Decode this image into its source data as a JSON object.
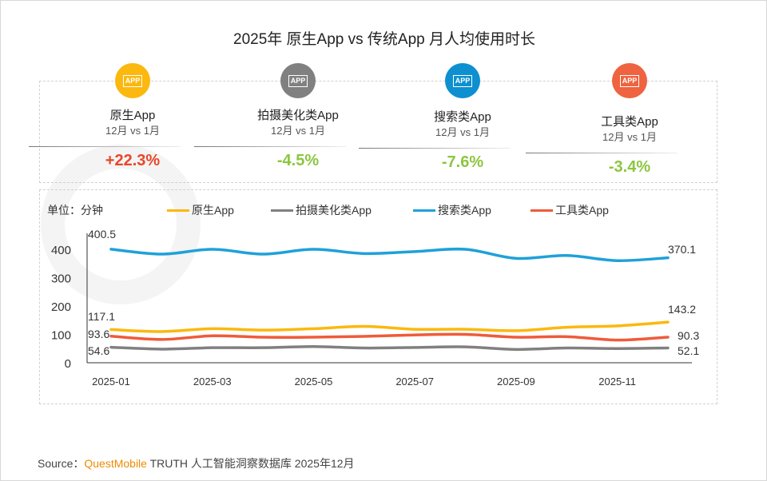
{
  "title": "2025年 原生App vs 传统App 月人均使用时长",
  "watermark": "QUESTMOBILE",
  "cards": [
    {
      "name": "原生App",
      "sub": "12月 vs 1月",
      "value": "+22.3%",
      "color": "#fbb80f",
      "value_color": "#e8472a",
      "icon": "app-icon"
    },
    {
      "name": "拍摄美化类App",
      "sub": "12月 vs 1月",
      "value": "-4.5%",
      "color": "#808080",
      "value_color": "#8cc63f",
      "icon": "app-icon"
    },
    {
      "name": "搜索类App",
      "sub": "12月 vs 1月",
      "value": "-7.6%",
      "color": "#0e8fd0",
      "value_color": "#8cc63f",
      "icon": "app-icon"
    },
    {
      "name": "工具类App",
      "sub": "12月 vs 1月",
      "value": "-3.4%",
      "color": "#ef6340",
      "value_color": "#8cc63f",
      "icon": "app-icon"
    }
  ],
  "icon_text": "APP",
  "unit": "单位：分钟",
  "chart_data": {
    "type": "line",
    "x": [
      "2025-01",
      "2025-02",
      "2025-03",
      "2025-04",
      "2025-05",
      "2025-06",
      "2025-07",
      "2025-08",
      "2025-09",
      "2025-10",
      "2025-11",
      "2025-12"
    ],
    "xticks": [
      "2025-01",
      "2025-03",
      "2025-05",
      "2025-07",
      "2025-09",
      "2025-11"
    ],
    "yticks": [
      0,
      100,
      200,
      300,
      400
    ],
    "ylim": [
      0,
      450
    ],
    "grid": false,
    "legend": "top",
    "series": [
      {
        "name": "原生App",
        "color": "#fbb80f",
        "values": [
          117.1,
          110,
          120,
          115,
          120,
          128,
          118,
          118,
          113,
          125,
          130,
          143.2
        ],
        "labels": {
          "first": "117.1",
          "last": "143.2"
        }
      },
      {
        "name": "拍摄美化类App",
        "color": "#808080",
        "values": [
          54.6,
          48,
          53,
          53,
          57,
          52,
          54,
          56,
          47,
          52,
          50,
          52.1
        ],
        "labels": {
          "first": "54.6",
          "last": "52.1"
        }
      },
      {
        "name": "搜索类App",
        "color": "#1ea1d9",
        "values": [
          400.5,
          383,
          400,
          383,
          400,
          385,
          392,
          400,
          368,
          378,
          360,
          370.1
        ],
        "labels": {
          "first": "400.5",
          "last": "370.1"
        }
      },
      {
        "name": "工具类App",
        "color": "#ef5b3a",
        "values": [
          93.6,
          82,
          95,
          90,
          90,
          93,
          98,
          100,
          90,
          92,
          80,
          90.3
        ],
        "labels": {
          "first": "93.6",
          "last": "90.3"
        }
      }
    ]
  },
  "source": {
    "prefix": "Source：",
    "brand": "QuestMobile",
    "rest": " TRUTH 人工智能洞察数据库 2025年12月"
  }
}
